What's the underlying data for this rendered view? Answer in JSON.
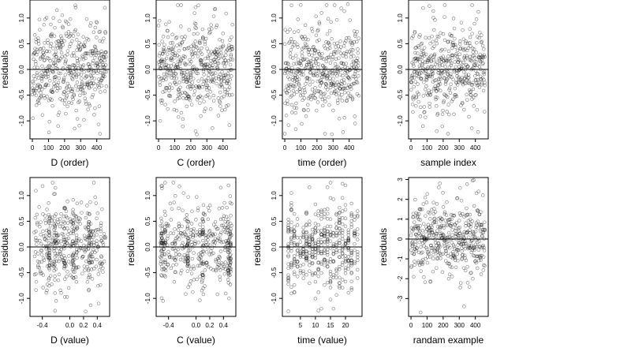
{
  "chart_data": [
    {
      "type": "scatter",
      "xlabel": "D (order)",
      "ylabel": "residuals",
      "xlim": [
        -15,
        480
      ],
      "ylim": [
        -1.35,
        1.35
      ],
      "xticks": [
        0,
        100,
        200,
        300,
        400
      ],
      "yticks": [
        -1.0,
        -0.5,
        0.0,
        0.5,
        1.0
      ],
      "xtick_labels": [
        "0",
        "100",
        "200",
        "300",
        "400"
      ],
      "ytick_labels": [
        "-1.0",
        "-0.5",
        "0.0",
        "0.5",
        "1.0"
      ],
      "hline": 0,
      "grid": false,
      "generator": {
        "kind": "order",
        "n": 460,
        "seed": 11,
        "sd": 0.43,
        "xmin": 0,
        "xmax": 460
      },
      "extremes": [
        [
          160,
          -1.1
        ],
        [
          420,
          -1.25
        ],
        [
          130,
          1.0
        ],
        [
          450,
          1.2
        ]
      ]
    },
    {
      "type": "scatter",
      "xlabel": "C (order)",
      "ylabel": "residuals",
      "xlim": [
        -15,
        480
      ],
      "ylim": [
        -1.35,
        1.35
      ],
      "xticks": [
        0,
        100,
        200,
        300,
        400
      ],
      "yticks": [
        -1.0,
        -0.5,
        0.0,
        0.5,
        1.0
      ],
      "xtick_labels": [
        "0",
        "100",
        "200",
        "300",
        "400"
      ],
      "ytick_labels": [
        "-1.0",
        "-0.5",
        "0.0",
        "0.5",
        "1.0"
      ],
      "hline": 0,
      "grid": false,
      "generator": {
        "kind": "order",
        "n": 460,
        "seed": 23,
        "sd": 0.43,
        "xmin": 0,
        "xmax": 460
      },
      "extremes": [
        [
          10,
          -1.0
        ],
        [
          230,
          -1.2
        ],
        [
          140,
          1.25
        ],
        [
          120,
          1.25
        ]
      ]
    },
    {
      "type": "scatter",
      "xlabel": "time (order)",
      "ylabel": "residuals",
      "xlim": [
        -15,
        480
      ],
      "ylim": [
        -1.35,
        1.35
      ],
      "xticks": [
        0,
        100,
        200,
        300,
        400
      ],
      "yticks": [
        -1.0,
        -0.5,
        0.0,
        0.5,
        1.0
      ],
      "xtick_labels": [
        "0",
        "100",
        "200",
        "300",
        "400"
      ],
      "ytick_labels": [
        "-1.0",
        "-0.5",
        "0.0",
        "0.5",
        "1.0"
      ],
      "hline": 0,
      "grid": false,
      "generator": {
        "kind": "order",
        "n": 460,
        "seed": 37,
        "sd": 0.43,
        "xmin": 0,
        "xmax": 460
      },
      "extremes": [
        [
          0,
          -1.25
        ],
        [
          250,
          -1.25
        ],
        [
          260,
          1.25
        ],
        [
          310,
          1.25
        ]
      ]
    },
    {
      "type": "scatter",
      "xlabel": "sample index",
      "ylabel": "residuals",
      "xlim": [
        -15,
        480
      ],
      "ylim": [
        -1.35,
        1.35
      ],
      "xticks": [
        0,
        100,
        200,
        300,
        400
      ],
      "yticks": [
        -1.0,
        -0.5,
        0.0,
        0.5,
        1.0
      ],
      "xtick_labels": [
        "0",
        "100",
        "200",
        "300",
        "400"
      ],
      "ytick_labels": [
        "-1.0",
        "-0.5",
        "0.0",
        "0.5",
        "1.0"
      ],
      "hline": 0,
      "grid": false,
      "generator": {
        "kind": "order",
        "n": 460,
        "seed": 41,
        "sd": 0.43,
        "xmin": 0,
        "xmax": 460
      },
      "extremes": [
        [
          160,
          -1.2
        ],
        [
          210,
          1.25
        ],
        [
          380,
          1.25
        ],
        [
          230,
          -1.25
        ]
      ]
    },
    {
      "type": "scatter",
      "xlabel": "D (value)",
      "ylabel": "residuals",
      "xlim": [
        -0.58,
        0.58
      ],
      "ylim": [
        -1.35,
        1.35
      ],
      "xticks": [
        -0.4,
        0.0,
        0.2,
        0.4
      ],
      "yticks": [
        -1.0,
        -0.5,
        0.0,
        0.5,
        1.0
      ],
      "xtick_labels": [
        "-0.4",
        "0.0",
        "0.2",
        "0.4"
      ],
      "ytick_labels": [
        "-1.0",
        "-0.5",
        "0.0",
        "0.5",
        "1.0"
      ],
      "hline": 0,
      "grid": false,
      "generator": {
        "kind": "uniform",
        "n": 460,
        "seed": 53,
        "sd": 0.42,
        "xmin": -0.52,
        "xmax": 0.52,
        "clusters": [
          -0.3,
          -0.22,
          -0.08,
          0.05,
          0.1,
          0.28
        ]
      },
      "extremes": [
        [
          -0.25,
          1.25
        ],
        [
          -0.2,
          -1.05
        ],
        [
          0.35,
          1.25
        ],
        [
          0.42,
          -1.1
        ]
      ]
    },
    {
      "type": "scatter",
      "xlabel": "C (value)",
      "ylabel": "residuals",
      "xlim": [
        -0.58,
        0.58
      ],
      "ylim": [
        -1.35,
        1.35
      ],
      "xticks": [
        -0.4,
        0.0,
        0.2,
        0.4
      ],
      "yticks": [
        -1.0,
        -0.5,
        0.0,
        0.5,
        1.0
      ],
      "xtick_labels": [
        "-0.4",
        "0.0",
        "0.2",
        "0.4"
      ],
      "ytick_labels": [
        "-1.0",
        "-0.5",
        "0.0",
        "0.5",
        "1.0"
      ],
      "hline": 0,
      "grid": false,
      "generator": {
        "kind": "uniform",
        "n": 460,
        "seed": 67,
        "sd": 0.42,
        "xmin": -0.52,
        "xmax": 0.52,
        "clusters": [
          -0.5,
          -0.45,
          -0.12,
          0.1,
          0.47,
          0.5
        ]
      },
      "extremes": [
        [
          -0.48,
          -1.05
        ],
        [
          -0.45,
          1.25
        ],
        [
          -0.33,
          1.25
        ],
        [
          0.48,
          -1.0
        ]
      ]
    },
    {
      "type": "scatter",
      "xlabel": "time (value)",
      "ylabel": "residuals",
      "xlim": [
        -1,
        25.5
      ],
      "ylim": [
        -1.35,
        1.35
      ],
      "xticks": [
        5,
        10,
        15,
        20
      ],
      "yticks": [
        -1.0,
        -0.5,
        0.0,
        0.5,
        1.0
      ],
      "xtick_labels": [
        "5",
        "10",
        "15",
        "20"
      ],
      "ytick_labels": [
        "-1.0",
        "-0.5",
        "0.0",
        "0.5",
        "1.0"
      ],
      "hline": 0,
      "grid": false,
      "generator": {
        "kind": "discrete",
        "n": 460,
        "seed": 71,
        "sd": 0.42,
        "xmin": 1,
        "xmax": 24
      },
      "extremes": [
        [
          1,
          -1.25
        ],
        [
          12,
          -1.2
        ],
        [
          15,
          1.25
        ],
        [
          16,
          -1.2
        ]
      ]
    },
    {
      "type": "scatter",
      "xlabel": "randam example",
      "ylabel": "residuals",
      "xlim": [
        -15,
        480
      ],
      "ylim": [
        -3.9,
        3.1
      ],
      "xticks": [
        0,
        100,
        200,
        300,
        400
      ],
      "yticks": [
        -3,
        -2,
        -1,
        0,
        1,
        2,
        3
      ],
      "xtick_labels": [
        "0",
        "100",
        "200",
        "300",
        "400"
      ],
      "ytick_labels": [
        "-3",
        "-2",
        "-1",
        "0",
        "1",
        "2",
        "3"
      ],
      "hline": 0,
      "grid": false,
      "generator": {
        "kind": "order",
        "n": 460,
        "seed": 97,
        "sd": 0.95,
        "xmin": 0,
        "xmax": 460
      },
      "extremes": [
        [
          60,
          -3.7
        ],
        [
          330,
          -3.4
        ],
        [
          180,
          2.8
        ],
        [
          420,
          2.4
        ]
      ]
    }
  ]
}
